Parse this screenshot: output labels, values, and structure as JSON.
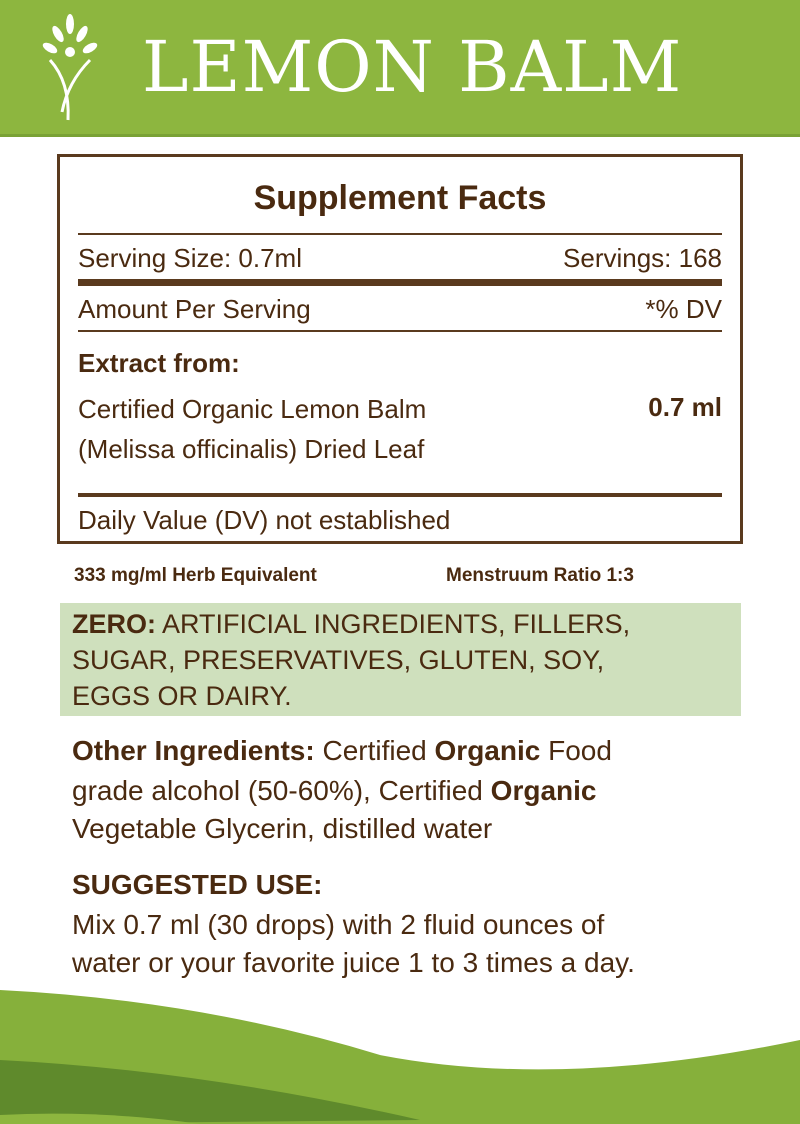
{
  "header": {
    "title": "LEMON BALM"
  },
  "facts": {
    "heading": "Supplement Facts",
    "serving_size": "Serving Size: 0.7ml",
    "servings": "Servings: 168",
    "amount_per_serving": "Amount Per Serving",
    "dv_header": "*% DV",
    "extract_label": "Extract from:",
    "ingredient_line1": "Certified Organic Lemon Balm",
    "ingredient_line2": "(Melissa officinalis) Dried Leaf",
    "ingredient_amount": "0.7 ml",
    "dv_note": "Daily Value (DV) not established"
  },
  "ratio": {
    "herb_equivalent": "333 mg/ml Herb Equivalent",
    "menstruum": "Menstruum Ratio 1:3"
  },
  "zero": {
    "label": "ZERO:",
    "line1": " ARTIFICIAL INGREDIENTS, FILLERS,",
    "line2": "SUGAR, PRESERVATIVES, GLUTEN, SOY,",
    "line3": "EGGS OR DAIRY."
  },
  "other": {
    "label": "Other Ingredients:",
    "p1": " Certified ",
    "b1": "Organic",
    "p2": " Food",
    "line2a": "grade alcohol (50-60%), Certified ",
    "b2": "Organic",
    "line3a": "Vegetable Glycerin, distilled water"
  },
  "use": {
    "heading": "SUGGESTED USE:",
    "line1": "Mix 0.7 ml (30 drops) with 2 fluid ounces of",
    "line2": "water or your favorite juice 1 to 3 times a day."
  },
  "colors": {
    "green": "#8db63f",
    "brown": "#4a2a10",
    "zero_bg": "#cfe0bd"
  }
}
